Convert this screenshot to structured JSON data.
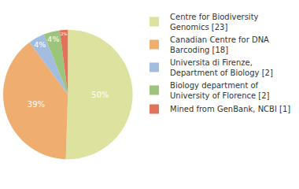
{
  "chart_data": {
    "type": "pie",
    "categories": [
      "Centre for Biodiversity Genomics [23]",
      "Canadian Centre for DNA Barcoding [18]",
      "Universita di Firenze, Department of Biology [2]",
      "Biology department of University of Florence [2]",
      "Mined from GenBank, NCBI [1]"
    ],
    "values": [
      50,
      39,
      4,
      4,
      2
    ],
    "value_labels": [
      "50%",
      "39%",
      "4%",
      "4%",
      "2%"
    ],
    "colors": [
      "#dde29e",
      "#f0ad70",
      "#a3bde0",
      "#9cc47a",
      "#e0735a"
    ],
    "data_labels": true,
    "legend": "right"
  }
}
